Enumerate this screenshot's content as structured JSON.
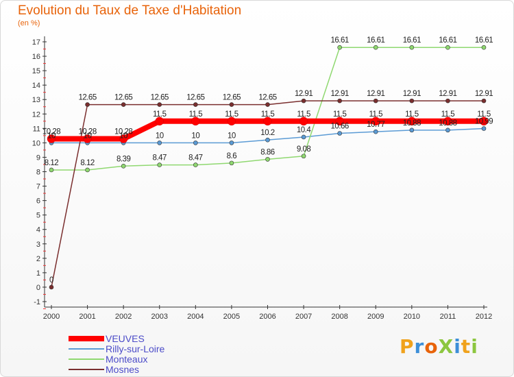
{
  "title": "Evolution du Taux de Taxe d'Habitation",
  "subtitle": "(en %)",
  "logo": {
    "text": "Proxiti",
    "letters": [
      {
        "ch": "P",
        "color": "#f0a21c"
      },
      {
        "ch": "r",
        "color": "#3d8fd8"
      },
      {
        "ch": "o",
        "color": "#e8630a"
      },
      {
        "ch": "X",
        "color": "#8cc63f"
      },
      {
        "ch": "i",
        "color": "#3d8fd8"
      },
      {
        "ch": "t",
        "color": "#f0a21c"
      },
      {
        "ch": "i",
        "color": "#8cc63f"
      }
    ]
  },
  "chart_data": {
    "type": "line",
    "title": "Evolution du Taux de Taxe d'Habitation",
    "ylabel": "(en %)",
    "xlabel": "",
    "x": [
      2000,
      2001,
      2002,
      2003,
      2004,
      2005,
      2006,
      2007,
      2008,
      2009,
      2010,
      2011,
      2012
    ],
    "ylim": [
      -1,
      17
    ],
    "yticks": [
      -1,
      0,
      1,
      2,
      3,
      4,
      5,
      6,
      7,
      8,
      9,
      10,
      11,
      12,
      13,
      14,
      15,
      16,
      17
    ],
    "grid": false,
    "legend_position": "bottom-left",
    "series": [
      {
        "name": "VEUVES",
        "color": "#ff0000",
        "width": "thick",
        "values": [
          10.28,
          10.28,
          10.28,
          11.5,
          11.5,
          11.5,
          11.5,
          11.5,
          11.5,
          11.5,
          11.5,
          11.5,
          11.5
        ],
        "labels": [
          "10.28",
          "10.28",
          "10.28",
          "11.5",
          "11.5",
          "11.5",
          "11.5",
          "11.5",
          "11.5",
          "11.5",
          "11.5",
          "11.5",
          "11.5"
        ]
      },
      {
        "name": "Rilly-sur-Loire",
        "color": "#5b9bd5",
        "width": "thin",
        "values": [
          10,
          10,
          10,
          10,
          10,
          10,
          10.2,
          10.4,
          10.66,
          10.77,
          10.88,
          10.88,
          10.99
        ],
        "labels": [
          "10",
          "10",
          "10",
          "10",
          "10",
          "10",
          "10.2",
          "10.4",
          "10.66",
          "10.77",
          "10.88",
          "10.88",
          "10.99"
        ]
      },
      {
        "name": "Monteaux",
        "color": "#8fd870",
        "width": "thin",
        "values": [
          8.12,
          8.12,
          8.39,
          8.47,
          8.47,
          8.6,
          8.86,
          9.08,
          16.61,
          16.61,
          16.61,
          16.61,
          16.61
        ],
        "labels": [
          "8.12",
          "8.12",
          "8.39",
          "8.47",
          "8.47",
          "8.6",
          "8.86",
          "9.08",
          "16.61",
          "16.61",
          "16.61",
          "16.61",
          "16.61"
        ]
      },
      {
        "name": "Mosnes",
        "color": "#7a2e2e",
        "width": "thin",
        "values": [
          0,
          12.65,
          12.65,
          12.65,
          12.65,
          12.65,
          12.65,
          12.91,
          12.91,
          12.91,
          12.91,
          12.91,
          12.91
        ],
        "labels": [
          "0",
          "12.65",
          "12.65",
          "12.65",
          "12.65",
          "12.65",
          "12.65",
          "12.91",
          "12.91",
          "12.91",
          "12.91",
          "12.91",
          "12.91"
        ]
      }
    ]
  }
}
